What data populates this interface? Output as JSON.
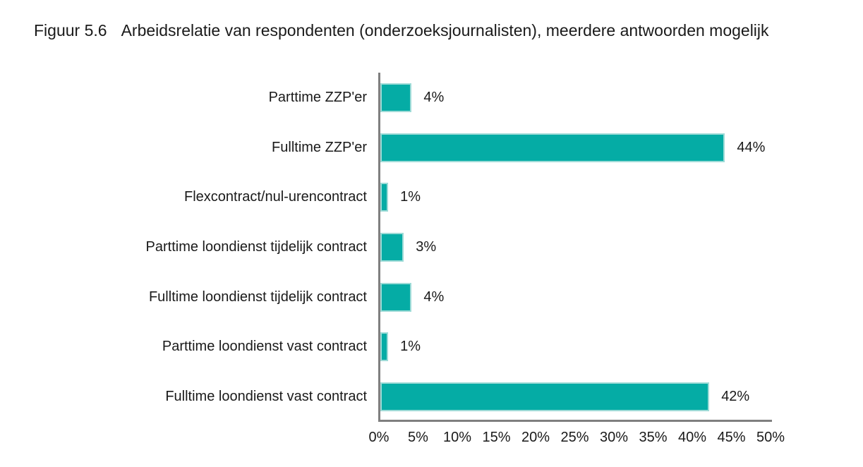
{
  "figure": {
    "label": "Figuur 5.6",
    "title": "Arbeidsrelatie van respondenten (onderzoeksjournalisten), meerdere antwoorden mogelijk"
  },
  "chart_data": {
    "type": "bar",
    "orientation": "horizontal",
    "title": "Figuur 5.6 Arbeidsrelatie van respondenten (onderzoeksjournalisten), meerdere antwoorden mogelijk",
    "categories": [
      "Parttime ZZP'er",
      "Fulltime ZZP'er",
      "Flexcontract/nul-urencontract",
      "Parttime loondienst tijdelijk contract",
      "Fulltime loondienst tijdelijk contract",
      "Parttime loondienst vast contract",
      "Fulltime loondienst vast contract"
    ],
    "values": [
      4,
      44,
      1,
      3,
      4,
      1,
      42
    ],
    "value_labels": [
      "4%",
      "44%",
      "1%",
      "3%",
      "4%",
      "1%",
      "42%"
    ],
    "x_ticks": [
      "0%",
      "5%",
      "10%",
      "15%",
      "20%",
      "25%",
      "30%",
      "35%",
      "40%",
      "45%",
      "50%"
    ],
    "xlim": [
      0,
      50
    ],
    "xlabel": "",
    "ylabel": "",
    "grid": false,
    "legend": false,
    "bar_color": "#05aca5",
    "bar_edge_color": "#9edbd7",
    "axis_color": "#7f7f7f",
    "text_color": "#1a1a1a",
    "background_color": "#ffffff"
  }
}
